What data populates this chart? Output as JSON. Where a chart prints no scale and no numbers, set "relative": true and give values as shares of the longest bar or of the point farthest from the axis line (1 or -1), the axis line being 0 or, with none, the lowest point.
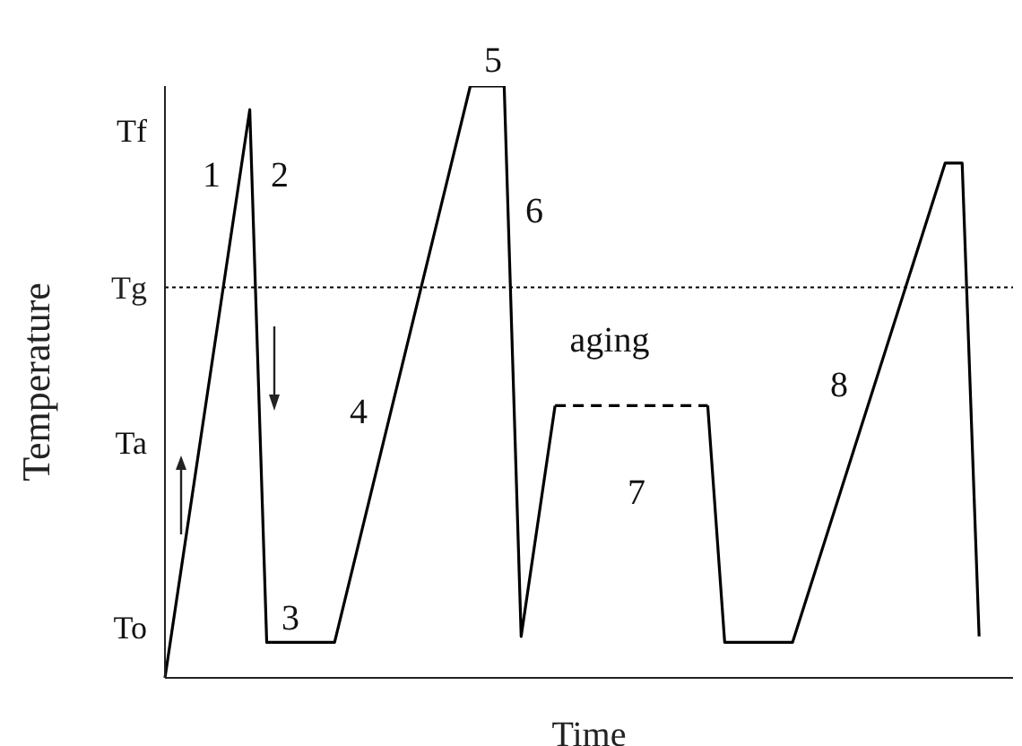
{
  "chart_data": {
    "type": "line",
    "xlabel": "Time",
    "ylabel": "Temperature",
    "relative": true,
    "line_style": "solid",
    "categories": [
      null,
      null,
      null,
      null,
      null,
      null,
      null,
      null,
      null,
      null,
      null,
      null,
      null,
      null,
      null,
      null,
      null,
      null,
      null,
      null,
      null,
      null,
      null,
      null,
      null,
      null,
      null,
      null,
      null,
      null,
      null,
      null,
      null,
      null,
      null,
      null,
      null,
      null,
      null,
      null,
      null,
      null,
      null,
      null,
      null,
      null,
      null,
      null,
      null,
      null,
      null
    ],
    "series": [
      {
        "color": "#000000",
        "values": [
          0,
          null,
          null,
          null,
          null,
          0.96,
          0.06,
          null,
          null,
          null,
          0.06,
          null,
          null,
          null,
          null,
          null,
          null,
          null,
          1,
          null,
          1,
          0.07,
          null,
          0.46,
          null,
          null,
          null,
          null,
          null,
          null,
          null,
          null,
          null,
          null,
          null,
          null,
          null,
          null,
          null,
          null,
          null,
          null,
          null,
          null,
          null,
          null,
          null,
          null,
          null,
          null,
          null
        ]
      },
      {
        "color": "#000000",
        "line_style": "dashed",
        "values": [
          null,
          null,
          null,
          null,
          null,
          null,
          null,
          null,
          null,
          null,
          null,
          null,
          null,
          null,
          null,
          null,
          null,
          null,
          null,
          null,
          null,
          null,
          null,
          0.46,
          null,
          null,
          null,
          null,
          null,
          null,
          null,
          null,
          0.46,
          null,
          null,
          null,
          null,
          null,
          null,
          null,
          null,
          null,
          null,
          null,
          null,
          null,
          null,
          null,
          null,
          null,
          null
        ]
      },
      {
        "color": "#000000",
        "values": [
          null,
          null,
          null,
          null,
          null,
          null,
          null,
          null,
          null,
          null,
          null,
          null,
          null,
          null,
          null,
          null,
          null,
          null,
          null,
          null,
          null,
          null,
          null,
          null,
          null,
          null,
          null,
          null,
          null,
          null,
          null,
          null,
          0.46,
          0.06,
          null,
          null,
          null,
          0.06,
          null,
          null,
          null,
          null,
          null,
          null,
          null,
          null,
          0.87,
          0.87,
          0.07,
          null,
          null
        ]
      }
    ],
    "ref_lines": [
      {
        "axis": "y",
        "value": 0.66,
        "label": "Tg",
        "color": "#000000",
        "line_style": "dotted"
      }
    ],
    "annotations": [
      "Tf",
      "Ta",
      "To",
      "1",
      "2",
      "3",
      "4",
      "5",
      "6",
      "aging",
      "7",
      "8"
    ]
  }
}
